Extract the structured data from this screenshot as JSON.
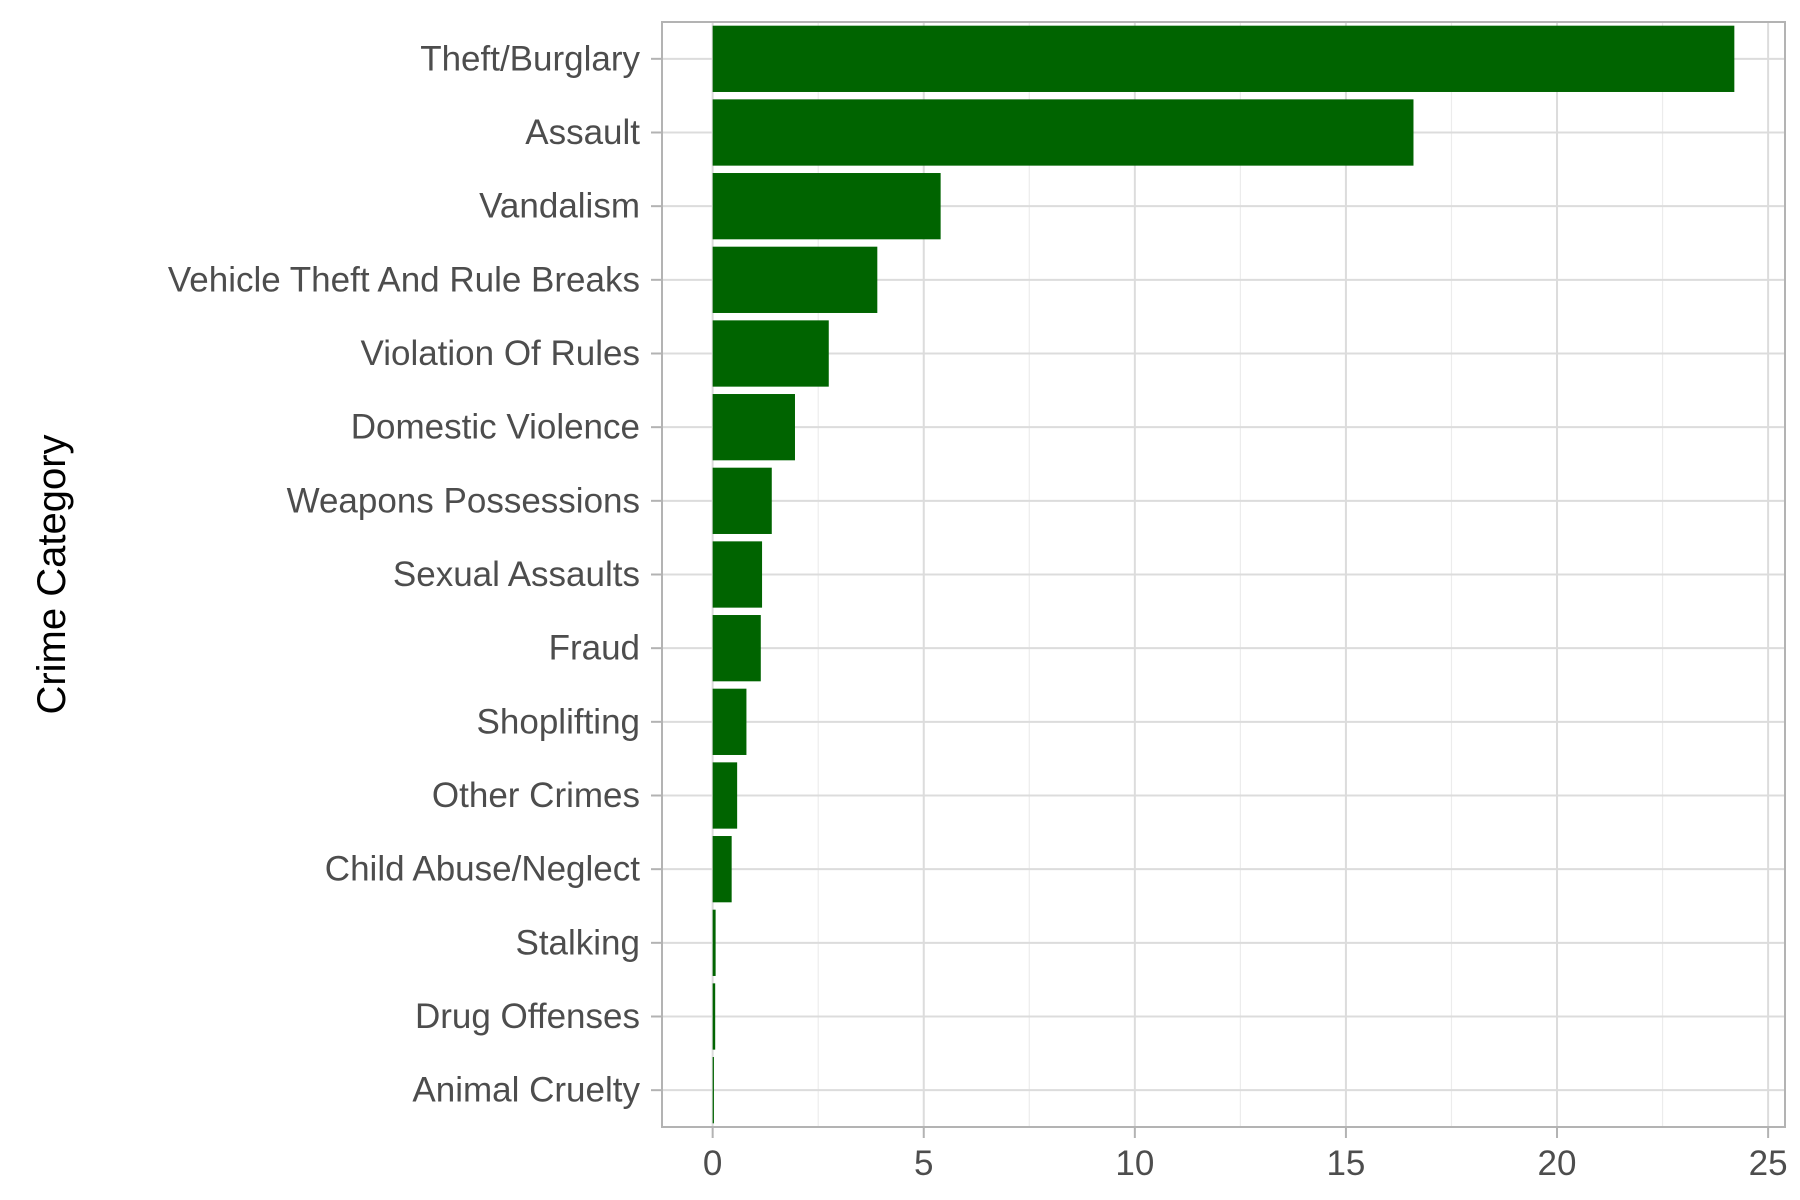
{
  "chart_data": {
    "type": "bar",
    "orientation": "horizontal",
    "title": "",
    "xlabel": "",
    "ylabel": "Crime Category",
    "categories": [
      "Theft/Burglary",
      "Assault",
      "Vandalism",
      "Vehicle Theft And Rule Breaks",
      "Violation Of Rules",
      "Domestic Violence",
      "Weapons Possessions",
      "Sexual Assaults",
      "Fraud",
      "Shoplifting",
      "Other Crimes",
      "Child Abuse/Neglect",
      "Stalking",
      "Drug Offenses",
      "Animal Cruelty"
    ],
    "values": [
      24.2,
      16.6,
      5.4,
      3.9,
      2.75,
      1.95,
      1.4,
      1.17,
      1.14,
      0.8,
      0.58,
      0.45,
      0.07,
      0.06,
      0.03
    ],
    "xlim": [
      -1.2,
      25.4
    ],
    "xticks": [
      0,
      5,
      10,
      15,
      20,
      25
    ],
    "xtick_labels": [
      "0",
      "5",
      "10",
      "15",
      "20",
      "25"
    ],
    "grid": true,
    "legend": "none",
    "bar_color": "#006400"
  }
}
